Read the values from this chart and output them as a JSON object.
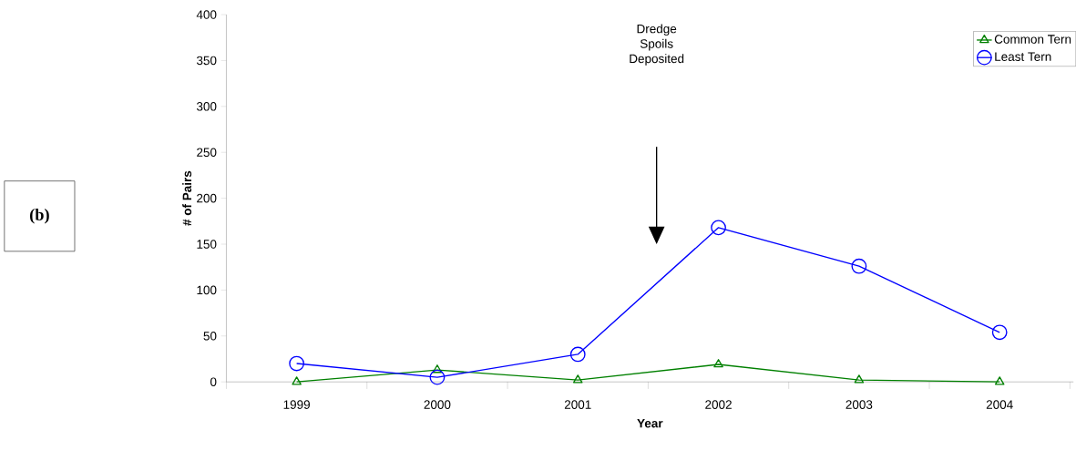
{
  "chart_data": {
    "type": "line",
    "xlabel": "Year",
    "ylabel": "# of Pairs",
    "categories": [
      "1999",
      "2000",
      "2001",
      "2002",
      "2003",
      "2004"
    ],
    "series": [
      {
        "name": "Common Tern",
        "color": "#008000",
        "marker": "triangle",
        "values": [
          0,
          13,
          2,
          19,
          2,
          0
        ]
      },
      {
        "name": "Least Tern",
        "color": "#0000ff",
        "marker": "circle",
        "values": [
          20,
          5,
          30,
          168,
          126,
          54
        ]
      }
    ],
    "ylim": [
      0,
      400
    ],
    "yticks": [
      0,
      50,
      100,
      150,
      200,
      250,
      300,
      350,
      400
    ],
    "grid": false,
    "legend": "top right",
    "line_style": "solid",
    "annotations": [
      "Dredge Spoils Deposited",
      "(b)"
    ]
  }
}
